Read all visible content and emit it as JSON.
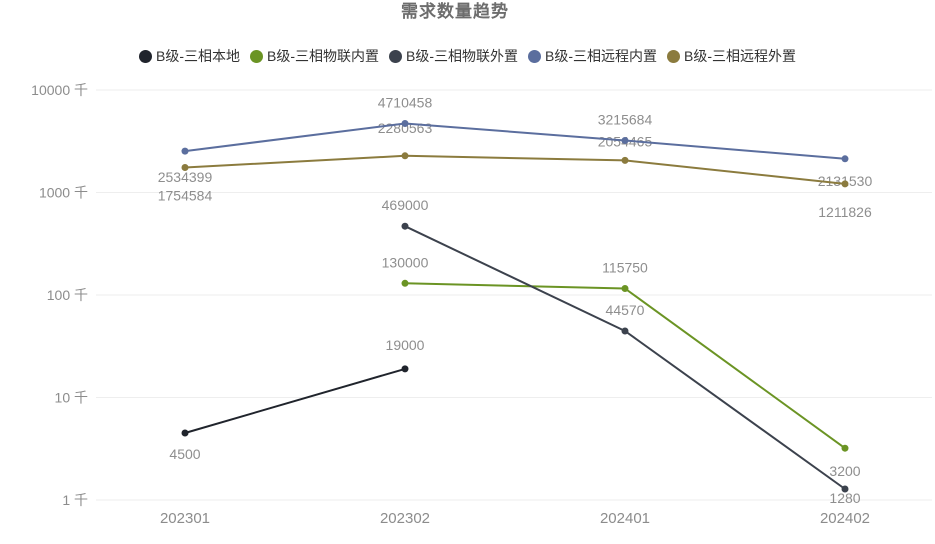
{
  "title": "需求数量趋势",
  "colors": {
    "grid": "#eeeeee",
    "axis_label": "#8c8c8c",
    "data_label": "#8e8e8e",
    "title": "#6d6d6d",
    "legend_text": "#333333"
  },
  "chart_data": {
    "type": "line",
    "title": "需求数量趋势",
    "legend_position": "top-center",
    "grid": true,
    "x_axis": {
      "label": "",
      "categories": [
        "202301",
        "202302",
        "202401",
        "202402"
      ]
    },
    "y_axis": {
      "label": "",
      "scale": "log",
      "unit": "千",
      "ticks": [
        "1 千",
        "10 千",
        "100 千",
        "1000 千",
        "10000 千"
      ],
      "tick_values": [
        1000,
        10000,
        100000,
        1000000,
        10000000
      ],
      "range": [
        1000,
        10000000
      ]
    },
    "series": [
      {
        "name": "B级-三相本地",
        "color": "#20242c",
        "points": [
          {
            "c": 0,
            "v": 4500,
            "dy": 21
          },
          {
            "c": 1,
            "v": 19000,
            "dy": -24
          }
        ]
      },
      {
        "name": "B级-三相物联内置",
        "color": "#6b9424",
        "points": [
          {
            "c": 1,
            "v": 130000,
            "dy": -21
          },
          {
            "c": 2,
            "v": 115750,
            "dy": -21
          },
          {
            "c": 3,
            "v": 3200,
            "dy": 23
          }
        ]
      },
      {
        "name": "B级-三相物联外置",
        "color": "#3c424d",
        "points": [
          {
            "c": 1,
            "v": 469000,
            "dy": -21
          },
          {
            "c": 2,
            "v": 44570,
            "dy": -21
          },
          {
            "c": 3,
            "v": 1280,
            "dy": 9
          }
        ]
      },
      {
        "name": "B级-三相远程内置",
        "color": "#5b6e9e",
        "points": [
          {
            "c": 0,
            "v": 2534399,
            "dy": 26
          },
          {
            "c": 1,
            "v": 4710458,
            "dy": -21
          },
          {
            "c": 2,
            "v": 3215684,
            "dy": -21
          },
          {
            "c": 3,
            "v": 2131530,
            "dy": 22
          }
        ]
      },
      {
        "name": "B级-三相远程外置",
        "color": "#8b7b3e",
        "points": [
          {
            "c": 0,
            "v": 1754584,
            "dy": 28
          },
          {
            "c": 1,
            "v": 2280563,
            "dy": -28
          },
          {
            "c": 2,
            "v": 2054465,
            "dy": -19
          },
          {
            "c": 3,
            "v": 1211826,
            "dy": 28
          }
        ]
      }
    ]
  }
}
